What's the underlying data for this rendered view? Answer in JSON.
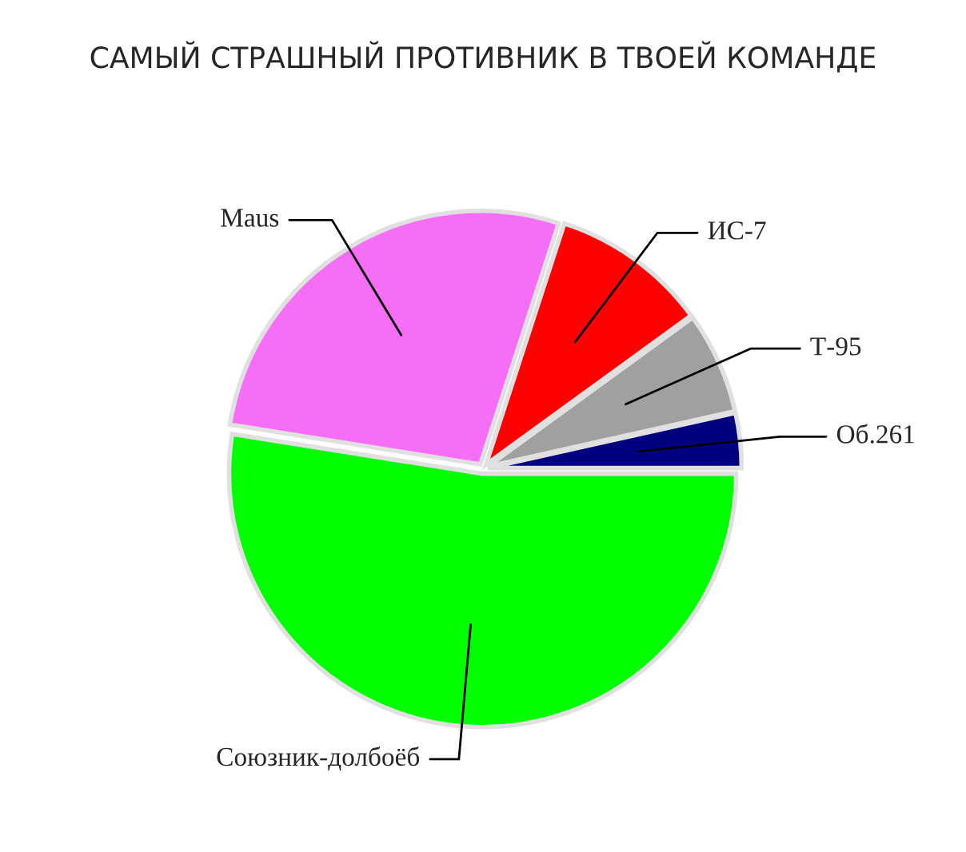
{
  "chart_data": {
    "type": "pie",
    "title": "САМЫЙ СТРАШНЫЙ ПРОТИВНИК В ТВОЕЙ КОМАНДЕ",
    "categories": [
      "Об.261",
      "Т-95",
      "ИС-7",
      "Maus",
      "Союзник-долбоёб"
    ],
    "values": [
      3.5,
      6.5,
      10,
      27.5,
      52.5
    ],
    "colors": [
      "#000080",
      "#a0a0a0",
      "#ff0000",
      "#f56ef5",
      "#00ff00"
    ],
    "legend": false
  }
}
